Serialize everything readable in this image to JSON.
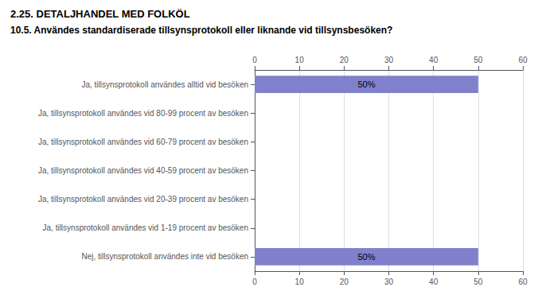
{
  "chart_data": {
    "type": "bar",
    "orientation": "horizontal",
    "title": "2.25. DETALJHANDEL MED FOLKÖL",
    "subtitle": "10.5. Användes standardiserade tillsynsprotokoll eller liknande vid tillsynsbesöken?",
    "categories": [
      "Ja, tillsynsprotokoll användes alltid vid besöken",
      "Ja, tillsynsprotokoll användes vid 80-99 procent av besöken",
      "Ja, tillsynsprotokoll användes vid 60-79 procent av besöken",
      "Ja, tillsynsprotokoll användes vid 40-59 procent av besöken",
      "Ja, tillsynsprotokoll användes vid 20-39 procent av besöken",
      "Ja, tillsynsprotokoll användes vid 1-19 procent av besöken",
      "Nej, tillsynsprotokoll användes inte vid besöken"
    ],
    "values": [
      50,
      0,
      0,
      0,
      0,
      0,
      50
    ],
    "value_labels": [
      "50%",
      null,
      null,
      null,
      null,
      null,
      "50%"
    ],
    "data_labels": true,
    "color": "#8080cc",
    "xlim": [
      0,
      60
    ],
    "xticks": [
      0,
      10,
      20,
      30,
      40,
      50,
      60
    ],
    "grid": true
  }
}
